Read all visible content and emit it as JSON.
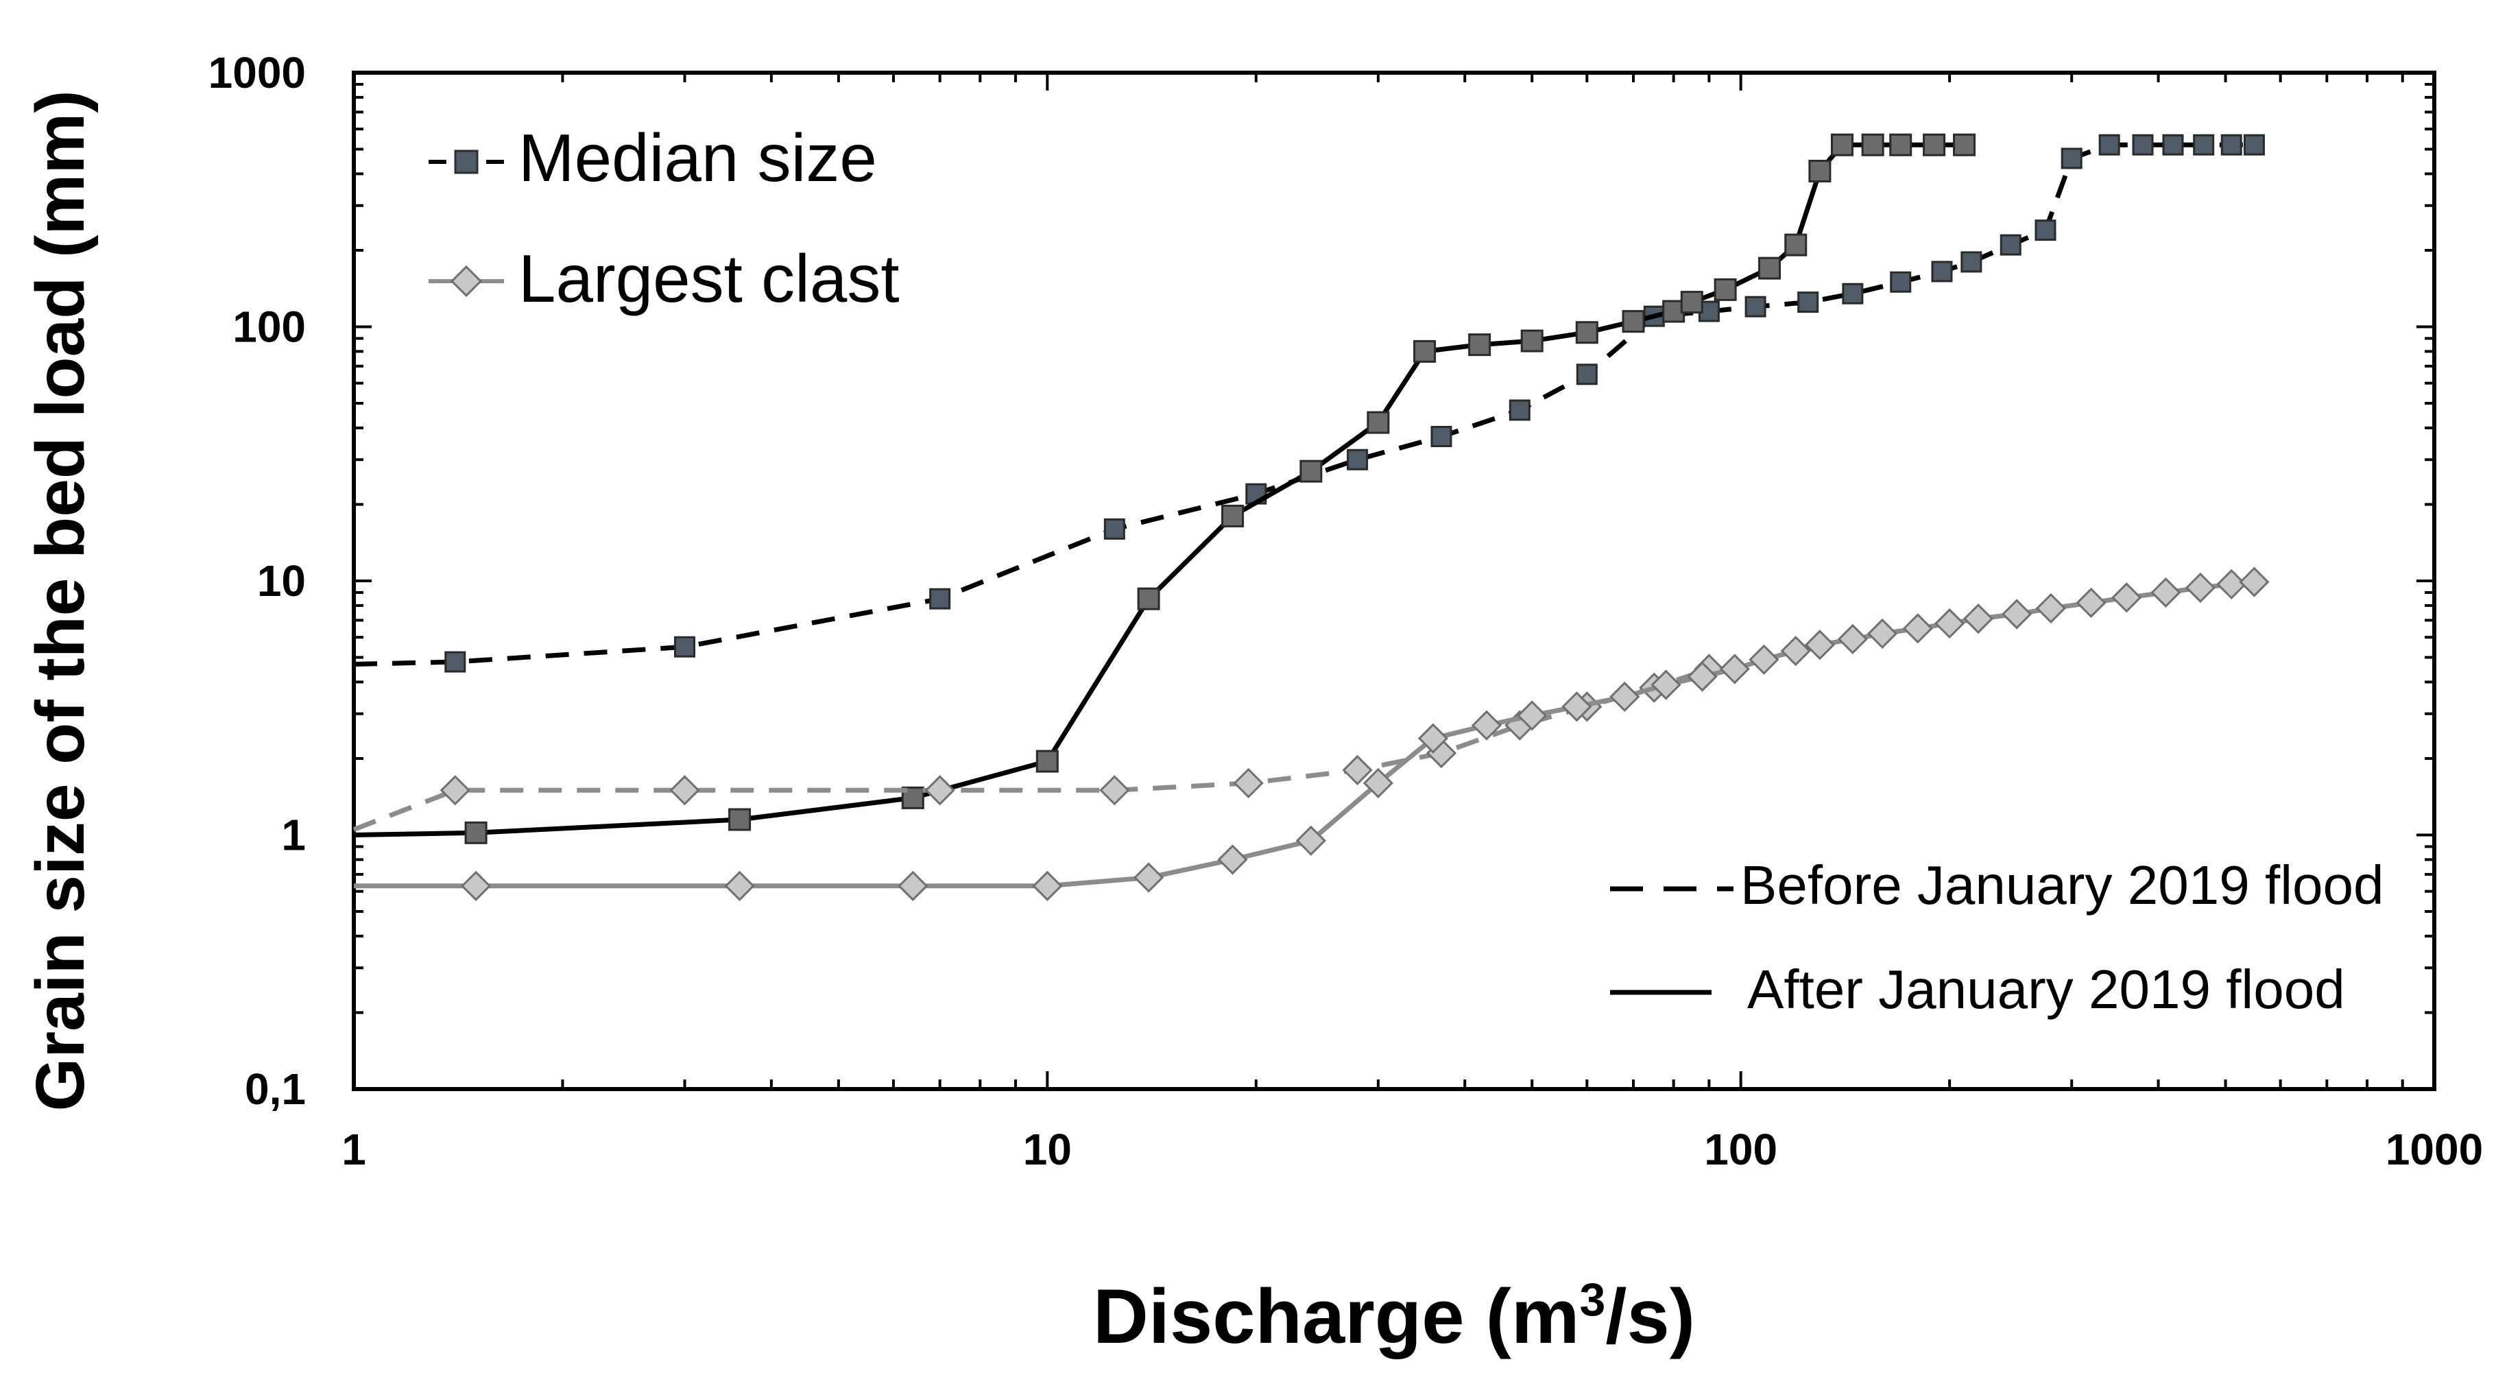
{
  "chart_data": {
    "type": "line",
    "x_scale": "log",
    "y_scale": "log",
    "xlim": [
      1,
      1000
    ],
    "ylim": [
      0.1,
      1000
    ],
    "xlabel_prefix": "Discharge (m",
    "xlabel_sup": "3",
    "xlabel_suffix": "/s)",
    "ylabel": "Grain size of the bed load (mm)",
    "x_ticks": [
      {
        "value": 1,
        "label": "1"
      },
      {
        "value": 10,
        "label": "10"
      },
      {
        "value": 100,
        "label": "100"
      },
      {
        "value": 1000,
        "label": "1000"
      }
    ],
    "y_ticks": [
      {
        "value": 0.1,
        "label": "0,1"
      },
      {
        "value": 1,
        "label": "1"
      },
      {
        "value": 10,
        "label": "10"
      },
      {
        "value": 100,
        "label": "100"
      },
      {
        "value": 1000,
        "label": "1000"
      }
    ],
    "legend_markers": [
      {
        "label": "Median size",
        "marker": "square"
      },
      {
        "label": "Largest clast",
        "marker": "diamond"
      }
    ],
    "legend_lines": [
      {
        "label": "Before January 2019 flood",
        "style": "dashed"
      },
      {
        "label": "After January 2019 flood",
        "style": "solid"
      }
    ],
    "series": [
      {
        "name": "Median size - Before January 2019 flood",
        "marker": "square",
        "line": "dashed",
        "color": "#000000",
        "marker_color": "#4f5b67",
        "x": [
          1,
          1.4,
          3,
          7,
          12.5,
          20,
          28,
          37,
          48,
          60,
          75,
          90,
          105,
          125,
          145,
          170,
          195,
          215,
          245,
          275,
          300,
          340,
          380,
          420,
          465,
          510,
          550
        ],
        "y": [
          4.7,
          4.8,
          5.5,
          8.5,
          16,
          22,
          30,
          37,
          47,
          65,
          110,
          115,
          120,
          125,
          135,
          150,
          165,
          180,
          210,
          240,
          460,
          520,
          520,
          520,
          520,
          520,
          520
        ]
      },
      {
        "name": "Median size - After January 2019 flood",
        "marker": "square",
        "line": "solid",
        "color": "#000000",
        "marker_color": "#6b6b6b",
        "x": [
          1,
          1.5,
          3.6,
          6.4,
          10,
          14,
          18.5,
          24,
          30,
          35,
          42,
          50,
          60,
          70,
          80,
          85,
          95,
          110,
          120,
          130,
          140,
          155,
          170,
          190,
          210
        ],
        "y": [
          1.0,
          1.02,
          1.15,
          1.4,
          1.95,
          8.5,
          18,
          27,
          42,
          80,
          85,
          88,
          95,
          105,
          115,
          125,
          140,
          170,
          210,
          410,
          520,
          520,
          520,
          520,
          520
        ]
      },
      {
        "name": "Largest clast - Before January 2019 flood",
        "marker": "diamond",
        "line": "dashed",
        "color": "#8c8c8c",
        "marker_color": "#c8c8c8",
        "x": [
          1,
          1.4,
          3,
          7,
          12.5,
          19.5,
          28,
          37,
          48,
          60,
          75,
          90
        ],
        "y": [
          1.05,
          1.5,
          1.5,
          1.5,
          1.5,
          1.6,
          1.8,
          2.1,
          2.7,
          3.2,
          3.8,
          4.5
        ]
      },
      {
        "name": "Largest clast - After January 2019 flood",
        "marker": "diamond",
        "line": "solid",
        "color": "#8c8c8c",
        "marker_color": "#c8c8c8",
        "x": [
          1,
          1.5,
          3.6,
          6.4,
          10,
          14,
          18.5,
          24,
          30,
          36,
          43,
          50,
          58,
          68,
          78,
          88,
          98,
          108,
          120,
          130,
          145,
          160,
          180,
          200,
          220,
          250,
          280,
          320,
          360,
          410,
          460,
          510,
          550
        ],
        "y": [
          0.63,
          0.63,
          0.63,
          0.63,
          0.63,
          0.68,
          0.8,
          0.95,
          1.6,
          2.4,
          2.7,
          2.95,
          3.2,
          3.5,
          3.9,
          4.2,
          4.5,
          4.9,
          5.3,
          5.6,
          5.9,
          6.2,
          6.5,
          6.8,
          7.1,
          7.4,
          7.8,
          8.2,
          8.6,
          9.0,
          9.4,
          9.7,
          9.9
        ]
      }
    ]
  }
}
